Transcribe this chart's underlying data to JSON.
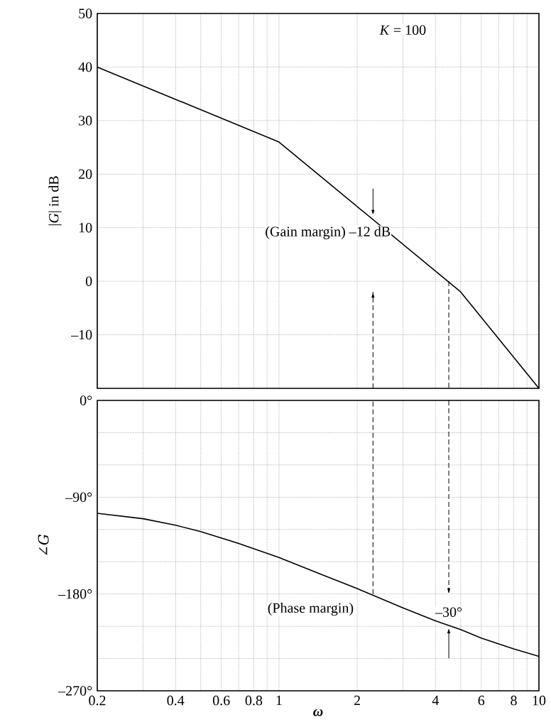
{
  "chart_data": [
    {
      "type": "line",
      "ylabel": "|*G*| in dB",
      "log": "x",
      "grid": true,
      "tick_labels": "y",
      "xlim": [
        0.2,
        10
      ],
      "ylim": [
        -20,
        50
      ],
      "series": [
        {
          "color": "#000000",
          "x": [
            0.2,
            1,
            5,
            10
          ],
          "values": [
            40,
            26,
            -2,
            -20
          ]
        },
        {
          "color": "#000000",
          "line_style": "dashed",
          "x": [
            2.3,
            2.3
          ],
          "values": [
            -20,
            -2
          ]
        },
        {
          "color": "#000000",
          "line_style": "dashed",
          "x": [
            4.5,
            4.5
          ],
          "values": [
            0,
            -20
          ]
        }
      ],
      "xticks": [
        0.2,
        {
          "value": 0.3,
          "label": null
        },
        0.4,
        {
          "value": 0.5,
          "label": null
        },
        0.6,
        {
          "value": 0.7,
          "label": null
        },
        0.8,
        {
          "value": 0.9,
          "label": null
        },
        1,
        2,
        {
          "value": 3,
          "label": null
        },
        4,
        {
          "value": 5,
          "label": null
        },
        6,
        {
          "value": 7,
          "label": null
        },
        8,
        {
          "value": 9,
          "label": null
        },
        10
      ],
      "yticks": [
        {
          "value": -20,
          "label": null
        },
        {
          "value": -10,
          "label": "–10"
        },
        0,
        10,
        20,
        30,
        40,
        50
      ],
      "annotations": [
        "*K* = 100",
        {
          "text": "(Gain margin) –12 dB",
          "x": 2.3,
          "y": 12
        }
      ]
    },
    {
      "type": "line",
      "xlabel": "ω",
      "ylabel": "∠*G*",
      "log": "x",
      "grid": true,
      "xlim": [
        0.2,
        10
      ],
      "ylim": [
        -270,
        0
      ],
      "series": [
        {
          "color": "#000000",
          "x": [
            0.2,
            0.3,
            0.4,
            0.5,
            0.7,
            1,
            1.5,
            2,
            3,
            4,
            5,
            6,
            8,
            10
          ],
          "values": [
            -105,
            -110,
            -116,
            -122,
            -133,
            -146,
            -163,
            -175,
            -193,
            -205,
            -213,
            -221,
            -231,
            -238
          ]
        },
        {
          "color": "#000000",
          "line_style": "dashed",
          "x": [
            2.3,
            2.3
          ],
          "values": [
            -180,
            0
          ]
        },
        {
          "color": "#000000",
          "line_style": "dashed",
          "x": [
            4.5,
            4.5
          ],
          "values": [
            0,
            -180
          ]
        }
      ],
      "xticks": [
        0.2,
        {
          "value": 0.3,
          "label": null
        },
        0.4,
        {
          "value": 0.5,
          "label": null
        },
        0.6,
        {
          "value": 0.7,
          "label": null
        },
        0.8,
        {
          "value": 0.9,
          "label": null
        },
        1,
        2,
        {
          "value": 3,
          "label": null
        },
        4,
        {
          "value": 5,
          "label": null
        },
        6,
        {
          "value": 7,
          "label": null
        },
        8,
        {
          "value": 9,
          "label": null
        },
        10
      ],
      "yticks": [
        {
          "value": -270,
          "label": "–270°"
        },
        {
          "value": -240,
          "label": null
        },
        {
          "value": -210,
          "label": null
        },
        {
          "value": -180,
          "label": "–180°"
        },
        {
          "value": -150,
          "label": null
        },
        {
          "value": -120,
          "label": null
        },
        {
          "value": -90,
          "label": "–90°"
        },
        {
          "value": -60,
          "label": null
        },
        {
          "value": -30,
          "label": null
        },
        {
          "value": 0,
          "label": "0°"
        }
      ],
      "annotations": [
        "(Phase margin)",
        {
          "text": "–30°",
          "x": 4.5,
          "y": -210
        }
      ]
    }
  ]
}
